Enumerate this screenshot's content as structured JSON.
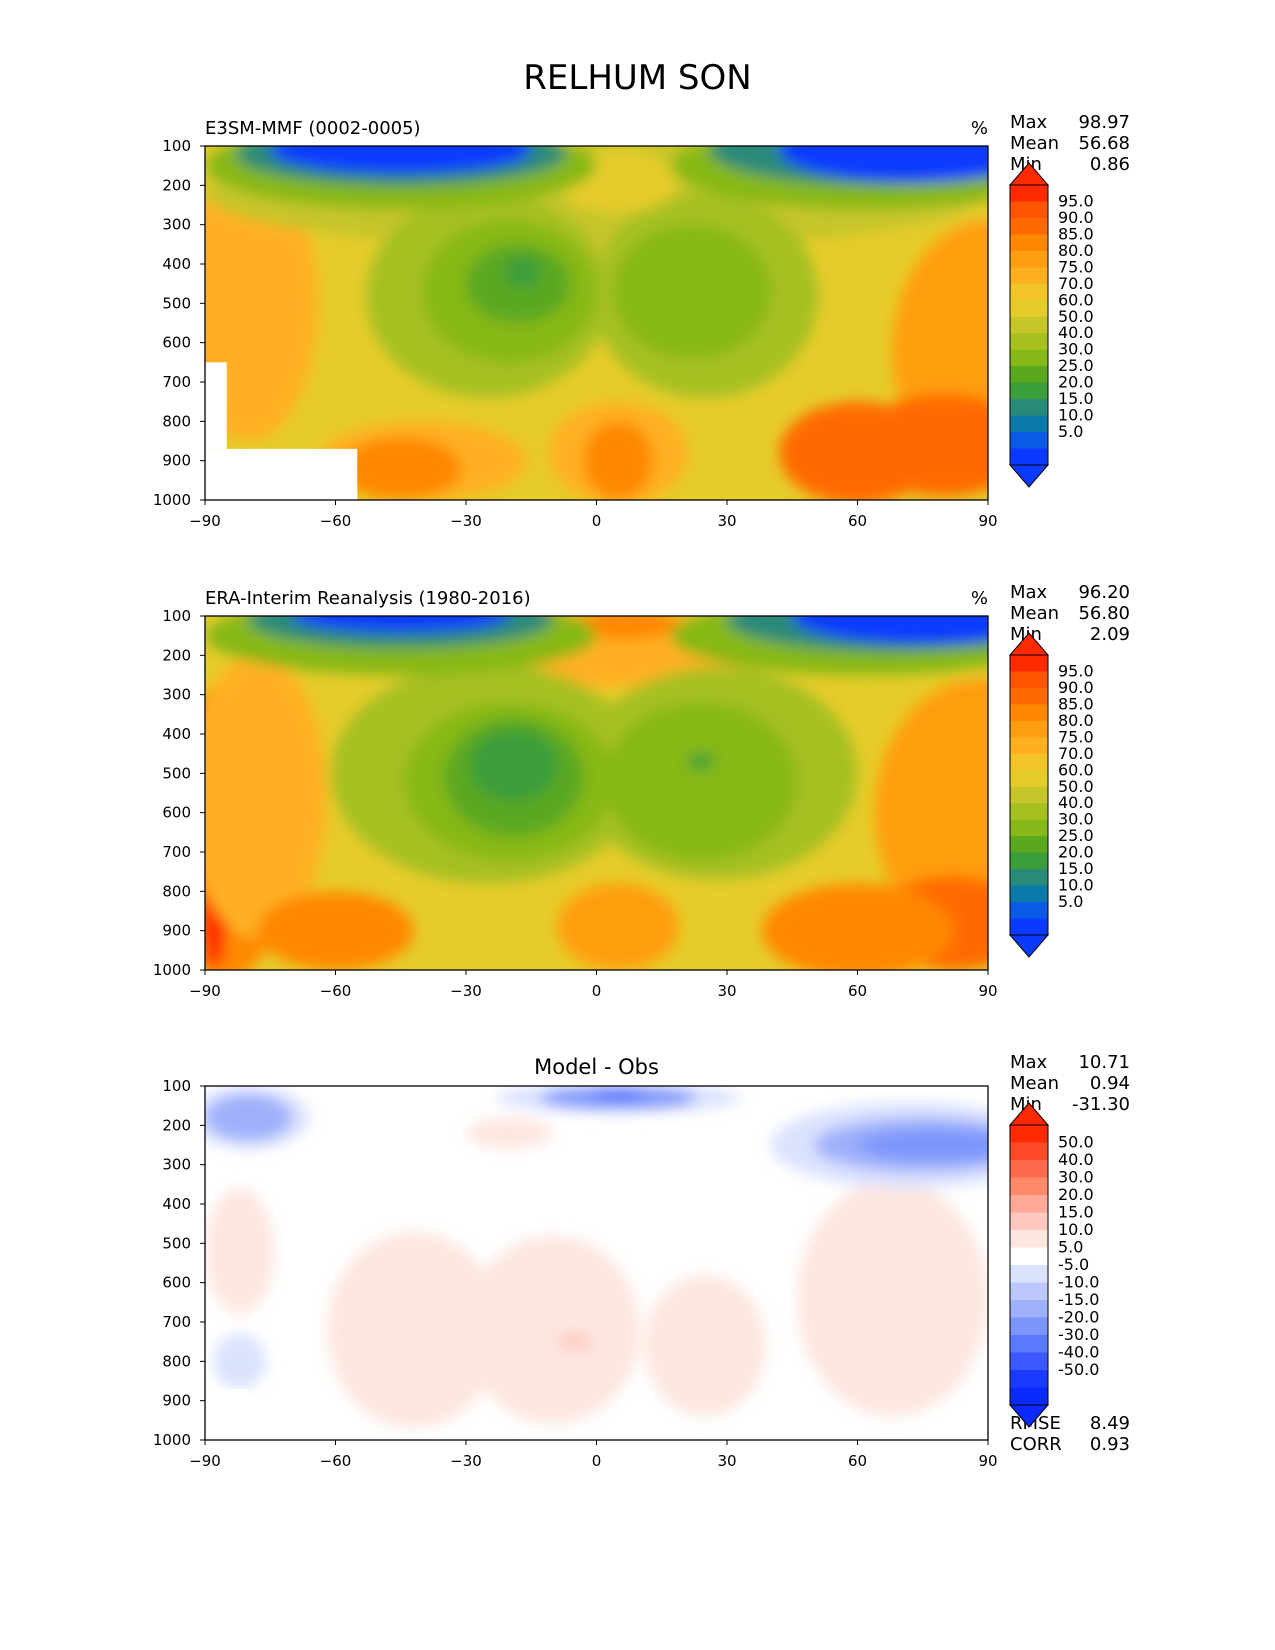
{
  "page_title": "RELHUM SON",
  "chart_data": [
    {
      "type": "contour",
      "title_left": "E3SM-MMF (0002-0005)",
      "title_center": "",
      "units": "%",
      "stats": [
        {
          "label": "Max",
          "value": "98.97"
        },
        {
          "label": "Mean",
          "value": "56.68"
        },
        {
          "label": "Min",
          "value": "0.86"
        }
      ],
      "extra_stats": [],
      "x_ticks": [
        "−90",
        "−60",
        "−30",
        "0",
        "30",
        "60",
        "90"
      ],
      "x_values": [
        -90,
        -60,
        -30,
        0,
        30,
        60,
        90
      ],
      "y_ticks": [
        "100",
        "200",
        "300",
        "400",
        "500",
        "600",
        "700",
        "800",
        "900",
        "1000"
      ],
      "y_values": [
        100,
        200,
        300,
        400,
        500,
        600,
        700,
        800,
        900,
        1000
      ],
      "xlim": [
        -90,
        90
      ],
      "ylim": [
        1000,
        100
      ],
      "colorbar_levels": [
        "95.0",
        "90.0",
        "85.0",
        "80.0",
        "75.0",
        "70.0",
        "60.0",
        "50.0",
        "40.0",
        "30.0",
        "25.0",
        "20.0",
        "15.0",
        "10.0",
        "5.0"
      ],
      "colorbar_colors": [
        "#ff2a00",
        "#ff5400",
        "#ff6a00",
        "#ff8800",
        "#ff9e10",
        "#ffb020",
        "#f3c42a",
        "#e6cc2a",
        "#c6c52a",
        "#a6c020",
        "#86b818",
        "#5aa820",
        "#3a9e3a",
        "#2a8a7a",
        "#0a7aa8",
        "#0a5ae6",
        "#0a3aff"
      ],
      "background": "#e6cc2a",
      "blobs": [
        {
          "cx": 90,
          "cy": 620,
          "rx": 22,
          "ry": 330,
          "fill": "#ff9e10"
        },
        {
          "cx": 80,
          "cy": 860,
          "rx": 20,
          "ry": 130,
          "fill": "#ff6a00"
        },
        {
          "cx": -88,
          "cy": 450,
          "rx": 10,
          "ry": 200,
          "fill": "#ff8800"
        },
        {
          "cx": -80,
          "cy": 500,
          "rx": 16,
          "ry": 350,
          "fill": "#ffb020"
        },
        {
          "cx": -40,
          "cy": 900,
          "rx": 24,
          "ry": 100,
          "fill": "#ffb020"
        },
        {
          "cx": -45,
          "cy": 920,
          "rx": 14,
          "ry": 80,
          "fill": "#ff8800"
        },
        {
          "cx": 5,
          "cy": 880,
          "rx": 16,
          "ry": 130,
          "fill": "#ffb020"
        },
        {
          "cx": 5,
          "cy": 900,
          "rx": 8,
          "ry": 100,
          "fill": "#ff8800"
        },
        {
          "cx": 60,
          "cy": 880,
          "rx": 18,
          "ry": 130,
          "fill": "#ff6a00"
        },
        {
          "cx": 0,
          "cy": 220,
          "rx": 90,
          "ry": 140,
          "fill": "#c6c52a"
        },
        {
          "cx": -25,
          "cy": 480,
          "rx": 28,
          "ry": 260,
          "fill": "#a6c020"
        },
        {
          "cx": 25,
          "cy": 480,
          "rx": 26,
          "ry": 260,
          "fill": "#a6c020"
        },
        {
          "cx": -20,
          "cy": 470,
          "rx": 20,
          "ry": 180,
          "fill": "#86b818"
        },
        {
          "cx": 22,
          "cy": 470,
          "rx": 18,
          "ry": 170,
          "fill": "#86b818"
        },
        {
          "cx": -18,
          "cy": 450,
          "rx": 12,
          "ry": 100,
          "fill": "#5aa820"
        },
        {
          "cx": -17,
          "cy": 420,
          "rx": 4,
          "ry": 40,
          "fill": "#3a9e3a"
        },
        {
          "cx": 5,
          "cy": 190,
          "rx": 14,
          "ry": 80,
          "fill": "#e6cc2a"
        },
        {
          "cx": -45,
          "cy": 150,
          "rx": 45,
          "ry": 110,
          "fill": "#86b818"
        },
        {
          "cx": 62,
          "cy": 150,
          "rx": 45,
          "ry": 110,
          "fill": "#86b818"
        },
        {
          "cx": -45,
          "cy": 120,
          "rx": 38,
          "ry": 80,
          "fill": "#2a8a7a"
        },
        {
          "cx": 66,
          "cy": 110,
          "rx": 40,
          "ry": 90,
          "fill": "#2a8a7a"
        },
        {
          "cx": -45,
          "cy": 110,
          "rx": 30,
          "ry": 60,
          "fill": "#0a3aff"
        },
        {
          "cx": 72,
          "cy": 110,
          "rx": 30,
          "ry": 80,
          "fill": "#0a3aff"
        }
      ],
      "masks": [
        {
          "x0": -90,
          "x1": -55,
          "y0": 870,
          "y1": 1000
        },
        {
          "x0": -90,
          "x1": -85,
          "y0": 650,
          "y1": 870
        }
      ]
    },
    {
      "type": "contour",
      "title_left": "ERA-Interim Reanalysis (1980-2016)",
      "title_center": "",
      "units": "%",
      "stats": [
        {
          "label": "Max",
          "value": "96.20"
        },
        {
          "label": "Mean",
          "value": "56.80"
        },
        {
          "label": "Min",
          "value": "2.09"
        }
      ],
      "extra_stats": [],
      "x_ticks": [
        "−90",
        "−60",
        "−30",
        "0",
        "30",
        "60",
        "90"
      ],
      "x_values": [
        -90,
        -60,
        -30,
        0,
        30,
        60,
        90
      ],
      "y_ticks": [
        "100",
        "200",
        "300",
        "400",
        "500",
        "600",
        "700",
        "800",
        "900",
        "1000"
      ],
      "y_values": [
        100,
        200,
        300,
        400,
        500,
        600,
        700,
        800,
        900,
        1000
      ],
      "xlim": [
        -90,
        90
      ],
      "ylim": [
        1000,
        100
      ],
      "colorbar_levels": [
        "95.0",
        "90.0",
        "85.0",
        "80.0",
        "75.0",
        "70.0",
        "60.0",
        "50.0",
        "40.0",
        "30.0",
        "25.0",
        "20.0",
        "15.0",
        "10.0",
        "5.0"
      ],
      "colorbar_colors": [
        "#ff2a00",
        "#ff5400",
        "#ff6a00",
        "#ff8800",
        "#ff9e10",
        "#ffb020",
        "#f3c42a",
        "#e6cc2a",
        "#c6c52a",
        "#a6c020",
        "#86b818",
        "#5aa820",
        "#3a9e3a",
        "#2a8a7a",
        "#0a7aa8",
        "#0a5ae6",
        "#0a3aff"
      ],
      "background": "#e6cc2a",
      "blobs": [
        {
          "cx": 88,
          "cy": 600,
          "rx": 24,
          "ry": 340,
          "fill": "#ff9e10"
        },
        {
          "cx": 82,
          "cy": 880,
          "rx": 18,
          "ry": 120,
          "fill": "#ff6a00"
        },
        {
          "cx": -85,
          "cy": 650,
          "rx": 14,
          "ry": 380,
          "fill": "#ff8800"
        },
        {
          "cx": -88,
          "cy": 850,
          "rx": 3,
          "ry": 150,
          "fill": "#ff2a00"
        },
        {
          "cx": -78,
          "cy": 560,
          "rx": 16,
          "ry": 360,
          "fill": "#ffb020"
        },
        {
          "cx": -60,
          "cy": 900,
          "rx": 18,
          "ry": 100,
          "fill": "#ff8800"
        },
        {
          "cx": 5,
          "cy": 890,
          "rx": 14,
          "ry": 110,
          "fill": "#ff9e10"
        },
        {
          "cx": 60,
          "cy": 900,
          "rx": 22,
          "ry": 120,
          "fill": "#ff8800"
        },
        {
          "cx": 0,
          "cy": 180,
          "rx": 40,
          "ry": 100,
          "fill": "#ffb020"
        },
        {
          "cx": 7,
          "cy": 120,
          "rx": 12,
          "ry": 40,
          "fill": "#ff8800"
        },
        {
          "cx": -25,
          "cy": 500,
          "rx": 36,
          "ry": 280,
          "fill": "#a6c020"
        },
        {
          "cx": 28,
          "cy": 500,
          "rx": 32,
          "ry": 270,
          "fill": "#a6c020"
        },
        {
          "cx": -20,
          "cy": 520,
          "rx": 24,
          "ry": 200,
          "fill": "#86b818"
        },
        {
          "cx": 24,
          "cy": 520,
          "rx": 22,
          "ry": 200,
          "fill": "#86b818"
        },
        {
          "cx": -19,
          "cy": 510,
          "rx": 16,
          "ry": 150,
          "fill": "#5aa820"
        },
        {
          "cx": -19,
          "cy": 480,
          "rx": 10,
          "ry": 90,
          "fill": "#3a9e3a"
        },
        {
          "cx": 24,
          "cy": 470,
          "rx": 3,
          "ry": 20,
          "fill": "#3a9e3a"
        },
        {
          "cx": -45,
          "cy": 150,
          "rx": 45,
          "ry": 100,
          "fill": "#86b818"
        },
        {
          "cx": 62,
          "cy": 150,
          "rx": 45,
          "ry": 100,
          "fill": "#86b818"
        },
        {
          "cx": -45,
          "cy": 110,
          "rx": 35,
          "ry": 70,
          "fill": "#2a8a7a"
        },
        {
          "cx": 68,
          "cy": 110,
          "rx": 38,
          "ry": 80,
          "fill": "#2a8a7a"
        },
        {
          "cx": -45,
          "cy": 100,
          "rx": 25,
          "ry": 40,
          "fill": "#0a3aff"
        },
        {
          "cx": 75,
          "cy": 100,
          "rx": 30,
          "ry": 70,
          "fill": "#0a3aff"
        }
      ],
      "masks": []
    },
    {
      "type": "contour",
      "title_left": "",
      "title_center": "Model - Obs",
      "units": "",
      "stats": [
        {
          "label": "Max",
          "value": "10.71"
        },
        {
          "label": "Mean",
          "value": "0.94"
        },
        {
          "label": "Min",
          "value": "-31.30"
        }
      ],
      "extra_stats": [
        {
          "label": "RMSE",
          "value": "8.49"
        },
        {
          "label": "CORR",
          "value": "0.93"
        }
      ],
      "x_ticks": [
        "−90",
        "−60",
        "−30",
        "0",
        "30",
        "60",
        "90"
      ],
      "x_values": [
        -90,
        -60,
        -30,
        0,
        30,
        60,
        90
      ],
      "y_ticks": [
        "100",
        "200",
        "300",
        "400",
        "500",
        "600",
        "700",
        "800",
        "900",
        "1000"
      ],
      "y_values": [
        100,
        200,
        300,
        400,
        500,
        600,
        700,
        800,
        900,
        1000
      ],
      "xlim": [
        -90,
        90
      ],
      "ylim": [
        1000,
        100
      ],
      "colorbar_levels": [
        "50.0",
        "40.0",
        "30.0",
        "20.0",
        "15.0",
        "10.0",
        "5.0",
        "-5.0",
        "-10.0",
        "-15.0",
        "-20.0",
        "-30.0",
        "-40.0",
        "-50.0"
      ],
      "colorbar_colors": [
        "#ff2a00",
        "#ff4a2a",
        "#ff6a4a",
        "#ff8a6a",
        "#ffaa98",
        "#ffc8be",
        "#fde6e0",
        "#ffffff",
        "#dbe2fe",
        "#bcc8fc",
        "#9fb0fb",
        "#7b95fb",
        "#5a7afd",
        "#3a5aff",
        "#1a3aff",
        "#0a2aff"
      ],
      "background": "#ffffff",
      "blobs": [
        {
          "cx": -42,
          "cy": 720,
          "rx": 20,
          "ry": 250,
          "fill": "#fde6e0"
        },
        {
          "cx": -10,
          "cy": 720,
          "rx": 20,
          "ry": 240,
          "fill": "#fde6e0"
        },
        {
          "cx": 25,
          "cy": 760,
          "rx": 14,
          "ry": 180,
          "fill": "#fde6e0"
        },
        {
          "cx": 68,
          "cy": 640,
          "rx": 22,
          "ry": 300,
          "fill": "#fde6e0"
        },
        {
          "cx": -82,
          "cy": 520,
          "rx": 8,
          "ry": 160,
          "fill": "#fde6e0"
        },
        {
          "cx": -20,
          "cy": 220,
          "rx": 10,
          "ry": 40,
          "fill": "#fde6e0"
        },
        {
          "cx": -5,
          "cy": 750,
          "rx": 4,
          "ry": 20,
          "fill": "#ffc8be"
        },
        {
          "cx": -80,
          "cy": 180,
          "rx": 14,
          "ry": 80,
          "fill": "#dbe2fe"
        },
        {
          "cx": -80,
          "cy": 180,
          "rx": 10,
          "ry": 60,
          "fill": "#9fb0fb"
        },
        {
          "cx": 5,
          "cy": 130,
          "rx": 28,
          "ry": 40,
          "fill": "#dbe2fe"
        },
        {
          "cx": 5,
          "cy": 130,
          "rx": 18,
          "ry": 28,
          "fill": "#7b95fb"
        },
        {
          "cx": 5,
          "cy": 120,
          "rx": 6,
          "ry": 10,
          "fill": "#3a5aff"
        },
        {
          "cx": 72,
          "cy": 250,
          "rx": 32,
          "ry": 110,
          "fill": "#dbe2fe"
        },
        {
          "cx": 75,
          "cy": 250,
          "rx": 25,
          "ry": 70,
          "fill": "#9fb0fb"
        },
        {
          "cx": 78,
          "cy": 250,
          "rx": 18,
          "ry": 40,
          "fill": "#7b95fb"
        },
        {
          "cx": -82,
          "cy": 800,
          "rx": 6,
          "ry": 70,
          "fill": "#dbe2fe"
        }
      ],
      "masks": [
        {
          "x0": -90,
          "x1": -80,
          "y0": 870,
          "y1": 1000
        }
      ]
    }
  ]
}
